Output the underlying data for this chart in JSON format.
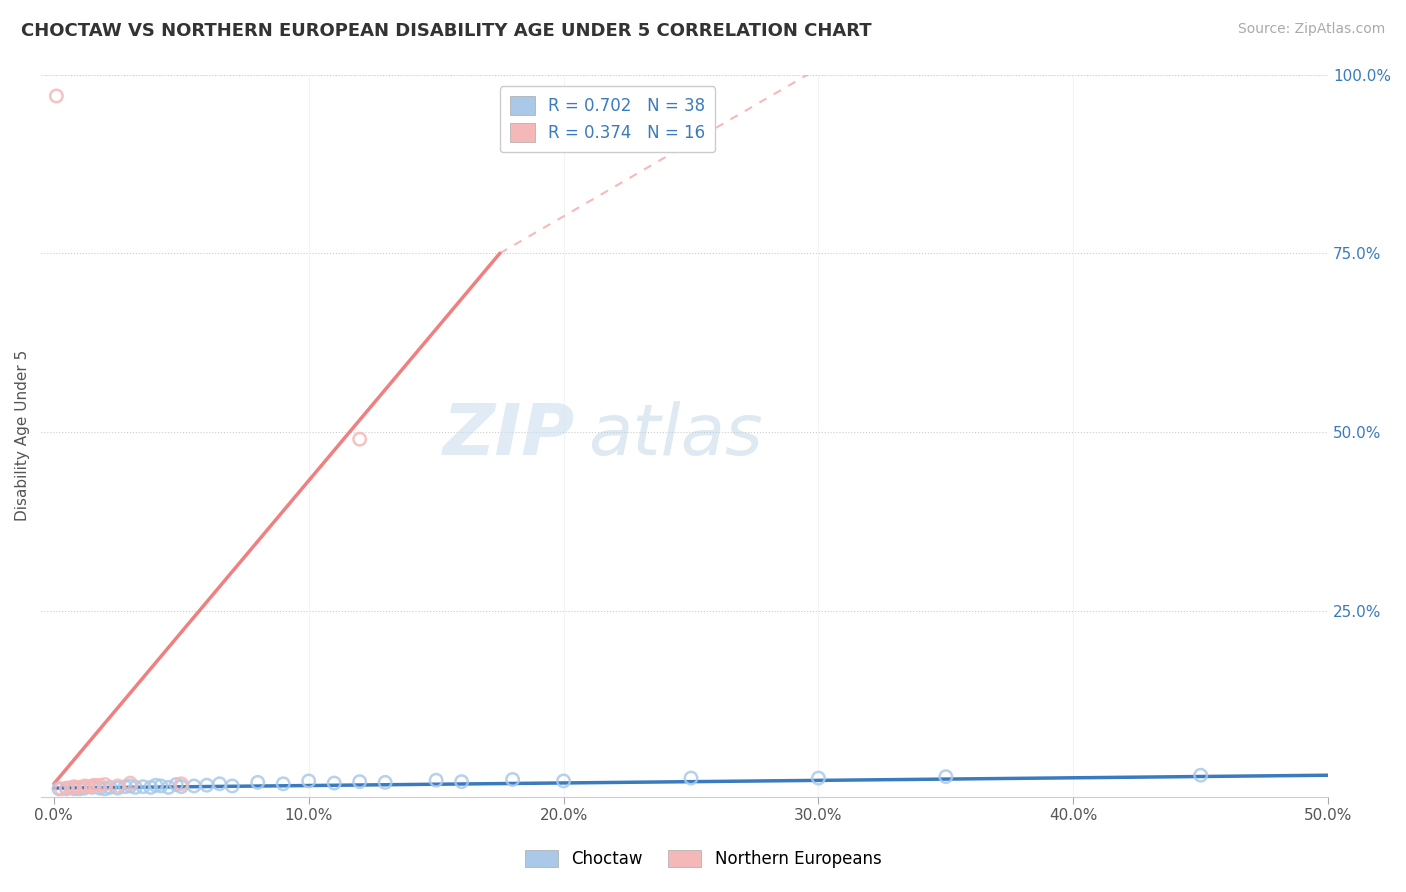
{
  "title": "CHOCTAW VS NORTHERN EUROPEAN DISABILITY AGE UNDER 5 CORRELATION CHART",
  "source": "Source: ZipAtlas.com",
  "ylabel": "Disability Age Under 5",
  "xlim": [
    -0.005,
    0.5
  ],
  "ylim": [
    -0.01,
    1.0
  ],
  "xticks": [
    0.0,
    0.1,
    0.2,
    0.3,
    0.4,
    0.5
  ],
  "yticks": [
    0.0,
    0.25,
    0.5,
    0.75,
    1.0
  ],
  "xtick_labels": [
    "0.0%",
    "10.0%",
    "20.0%",
    "30.0%",
    "40.0%",
    "50.0%"
  ],
  "ytick_labels": [
    "",
    "25.0%",
    "50.0%",
    "75.0%",
    "100.0%"
  ],
  "choctaw_scatter_color": "#aac9e8",
  "choctaw_line_color": "#3a7bbf",
  "ne_scatter_color": "#f5b8b8",
  "ne_line_color": "#f08080",
  "choctaw_R": 0.702,
  "choctaw_N": 38,
  "northern_eu_R": 0.374,
  "northern_eu_N": 16,
  "legend_label_1": "Choctaw",
  "legend_label_2": "Northern Europeans",
  "watermark_zip": "ZIP",
  "watermark_atlas": "atlas",
  "choctaw_regline": [
    [
      0.0,
      0.002
    ],
    [
      0.5,
      0.02
    ]
  ],
  "ne_regline_solid": [
    [
      0.0,
      0.008
    ],
    [
      0.175,
      0.75
    ]
  ],
  "ne_regline_dash": [
    [
      0.175,
      0.75
    ],
    [
      0.32,
      1.05
    ]
  ],
  "choctaw_points": [
    [
      0.002,
      0.001
    ],
    [
      0.005,
      0.001
    ],
    [
      0.008,
      0.001
    ],
    [
      0.01,
      0.001
    ],
    [
      0.012,
      0.002
    ],
    [
      0.015,
      0.003
    ],
    [
      0.018,
      0.002
    ],
    [
      0.02,
      0.001
    ],
    [
      0.022,
      0.003
    ],
    [
      0.025,
      0.002
    ],
    [
      0.028,
      0.004
    ],
    [
      0.03,
      0.005
    ],
    [
      0.032,
      0.003
    ],
    [
      0.035,
      0.004
    ],
    [
      0.038,
      0.003
    ],
    [
      0.04,
      0.006
    ],
    [
      0.042,
      0.005
    ],
    [
      0.045,
      0.003
    ],
    [
      0.048,
      0.007
    ],
    [
      0.05,
      0.004
    ],
    [
      0.055,
      0.005
    ],
    [
      0.06,
      0.006
    ],
    [
      0.065,
      0.008
    ],
    [
      0.07,
      0.005
    ],
    [
      0.08,
      0.01
    ],
    [
      0.09,
      0.008
    ],
    [
      0.1,
      0.012
    ],
    [
      0.11,
      0.009
    ],
    [
      0.12,
      0.011
    ],
    [
      0.13,
      0.01
    ],
    [
      0.15,
      0.013
    ],
    [
      0.16,
      0.011
    ],
    [
      0.18,
      0.014
    ],
    [
      0.2,
      0.012
    ],
    [
      0.25,
      0.016
    ],
    [
      0.3,
      0.016
    ],
    [
      0.35,
      0.018
    ],
    [
      0.45,
      0.02
    ]
  ],
  "northern_eu_points": [
    [
      0.003,
      0.001
    ],
    [
      0.005,
      0.002
    ],
    [
      0.007,
      0.003
    ],
    [
      0.008,
      0.004
    ],
    [
      0.01,
      0.003
    ],
    [
      0.012,
      0.005
    ],
    [
      0.013,
      0.004
    ],
    [
      0.015,
      0.005
    ],
    [
      0.016,
      0.006
    ],
    [
      0.018,
      0.006
    ],
    [
      0.02,
      0.007
    ],
    [
      0.025,
      0.005
    ],
    [
      0.03,
      0.009
    ],
    [
      0.05,
      0.008
    ],
    [
      0.12,
      0.49
    ],
    [
      0.001,
      0.97
    ]
  ]
}
